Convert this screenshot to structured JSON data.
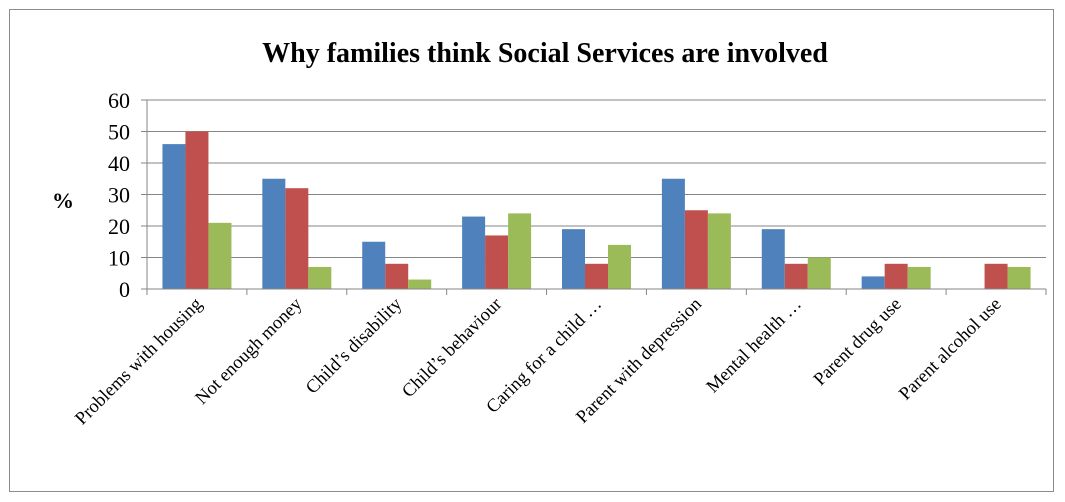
{
  "chart_data": {
    "type": "bar",
    "title": "Why families think Social Services are involved",
    "ylabel": "%",
    "xlabel": "",
    "ylim": [
      0,
      60
    ],
    "yticks": [
      0,
      10,
      20,
      30,
      40,
      50,
      60
    ],
    "grid": true,
    "legend": "none",
    "categories": [
      "Problems with housing",
      "Not enough money",
      "Child’s disability",
      "Child’s behaviour",
      "Caring for a child …",
      "Parent with depression",
      "Mental health …",
      "Parent drug use",
      "Parent alcohol use"
    ],
    "series": [
      {
        "color": "#4f81bd",
        "values": [
          46,
          35,
          15,
          23,
          19,
          35,
          19,
          4,
          0
        ]
      },
      {
        "color": "#c0504d",
        "values": [
          50,
          32,
          8,
          17,
          8,
          25,
          8,
          8,
          8
        ]
      },
      {
        "color": "#9bbb59",
        "values": [
          21,
          7,
          3,
          24,
          14,
          24,
          10,
          7,
          7
        ]
      }
    ]
  }
}
